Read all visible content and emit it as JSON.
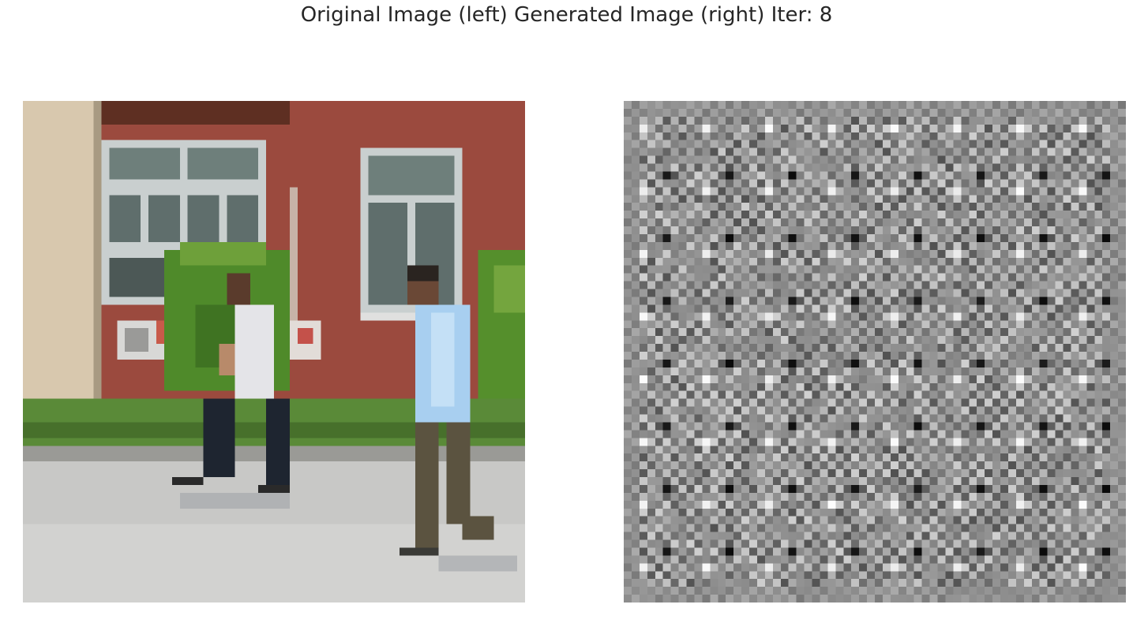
{
  "figure": {
    "title": "Original Image (left) Generated Image (right) Iter: 8"
  },
  "panels": {
    "left": {
      "content": "pixelated-street-photo"
    },
    "right": {
      "content": "grayscale-checkerboard-noise"
    }
  },
  "colors": {
    "background": "#ffffff",
    "title_text": "#262626",
    "wall_brick": "#9b4a3e",
    "wall_beige": "#d8c8ae",
    "window_frame": "#c9cfcf",
    "window_glass": "#5f6e6c",
    "bush": "#4f8a2a",
    "grass": "#5a8a38",
    "road": "#c8c8c6",
    "shirt_white": "#e4e4e8",
    "shirt_blue": "#a8cff0",
    "pants_dark": "#1e2530",
    "pants_olive": "#5b5340",
    "noise_mid": "#8f8f8f"
  }
}
